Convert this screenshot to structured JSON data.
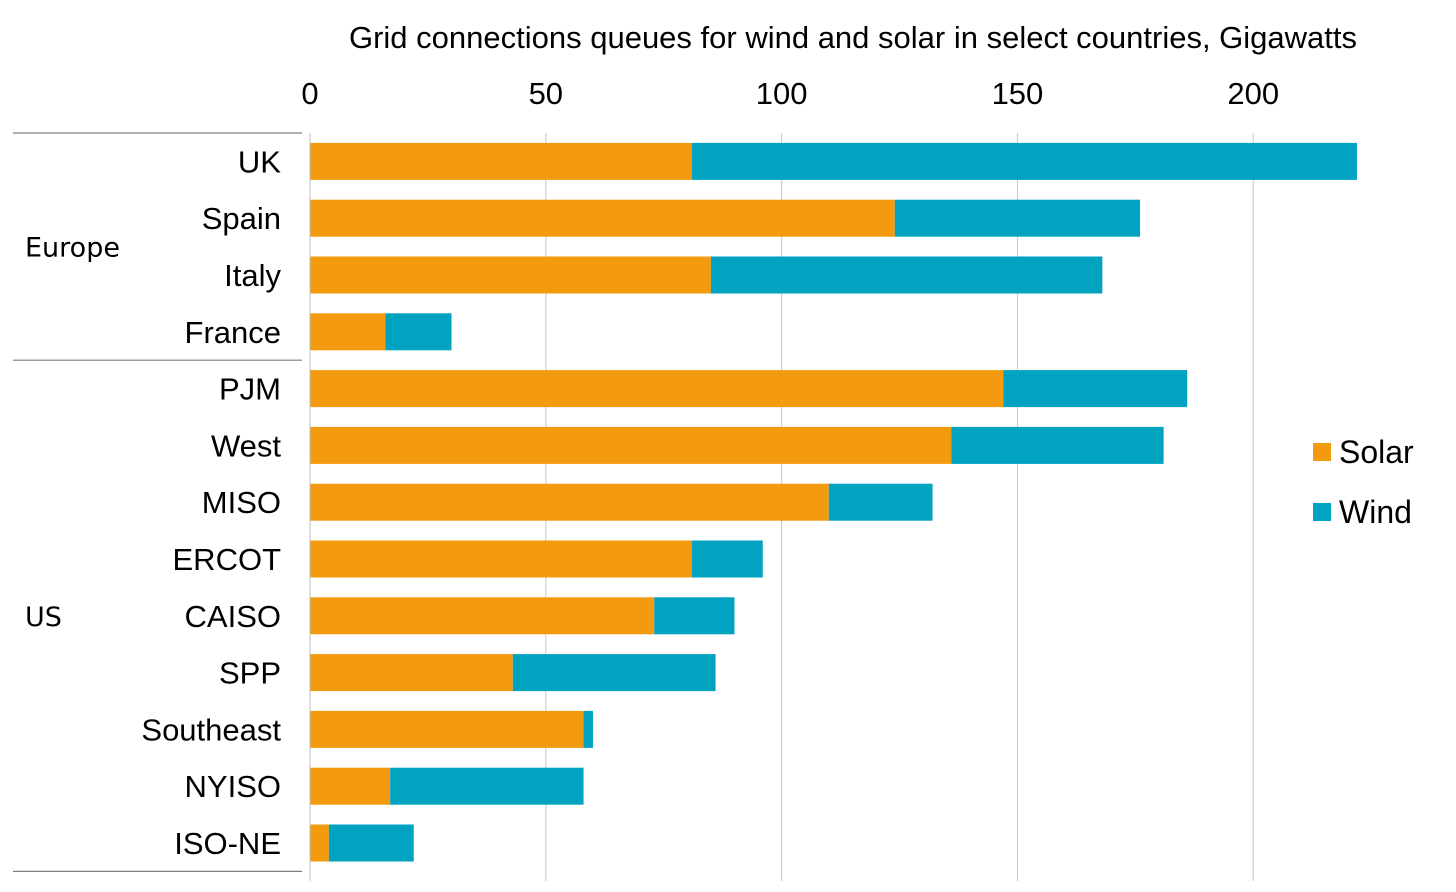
{
  "chart_data": {
    "type": "bar",
    "orientation": "horizontal",
    "stacked": true,
    "title": "Grid connections queues for wind and solar in select countries, Gigawatts",
    "xlabel": "",
    "ylabel": "",
    "xlim": [
      0,
      222
    ],
    "ticks": [
      0,
      50,
      100,
      150,
      200
    ],
    "tick_labels": [
      "0",
      "50",
      "100",
      "150",
      "200"
    ],
    "grid": "vertical",
    "legend_position": "right",
    "groups": [
      {
        "name": "Europe",
        "categories": [
          "UK",
          "Spain",
          "Italy",
          "France"
        ]
      },
      {
        "name": "US",
        "categories": [
          "PJM",
          "West",
          "MISO",
          "ERCOT",
          "CAISO",
          "SPP",
          "Southeast",
          "NYISO",
          "ISO-NE"
        ]
      }
    ],
    "categories": [
      "UK",
      "Spain",
      "Italy",
      "France",
      "PJM",
      "West",
      "MISO",
      "ERCOT",
      "CAISO",
      "SPP",
      "Southeast",
      "NYISO",
      "ISO-NE"
    ],
    "series": [
      {
        "name": "Solar",
        "color": "#F39A0E",
        "values": [
          81,
          124,
          85,
          16,
          147,
          136,
          110,
          81,
          73,
          43,
          58,
          17,
          4
        ]
      },
      {
        "name": "Wind",
        "color": "#02A3C0",
        "values": [
          141,
          52,
          83,
          14,
          39,
          45,
          22,
          15,
          17,
          43,
          2,
          41,
          18
        ]
      }
    ]
  }
}
